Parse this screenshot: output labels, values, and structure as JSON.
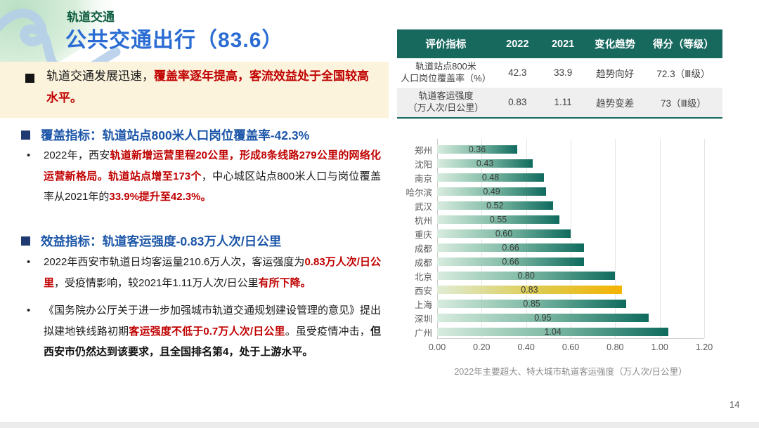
{
  "slide": {
    "kicker": "轨道交通",
    "title": "公共交通出行（83.6）",
    "page_number": "14"
  },
  "highlight": {
    "text_black": "轨道交通发展迅速，",
    "text_red": "覆盖率逐年提高，客流效益处于全国较高水平。"
  },
  "sections": [
    {
      "heading": "覆盖指标：轨道站点800米人口岗位覆盖率-42.3%",
      "paragraphs": [
        {
          "runs": [
            {
              "t": "2022年，西安",
              "style": "n"
            },
            {
              "t": "轨道新增运营里程20公里，形成8条线路279公里的网络化运营新格局。轨道站点增至173个",
              "style": "rb"
            },
            {
              "t": "，中心城区站点800米人口与岗位覆盖率从2021年的",
              "style": "n"
            },
            {
              "t": "33.9%提升至42.3%。",
              "style": "rb"
            }
          ]
        }
      ]
    },
    {
      "heading": "效益指标：轨道客运强度-0.83万人次/日公里",
      "paragraphs": [
        {
          "runs": [
            {
              "t": "2022年西安市轨道日均客运量210.6万人次，客运强度为",
              "style": "n"
            },
            {
              "t": "0.83万人次/日公里",
              "style": "rb"
            },
            {
              "t": "，受疫情影响，较2021年1.11万人次/日公里",
              "style": "n"
            },
            {
              "t": "有所下降。",
              "style": "rb"
            }
          ]
        },
        {
          "runs": [
            {
              "t": "《国务院办公厅关于进一步加强城市轨道交通规划建设管理的意见》提出拟建地铁线路初期",
              "style": "n"
            },
            {
              "t": "客运强度不低于0.7万人次/日公里",
              "style": "rb"
            },
            {
              "t": "。虽受疫情冲击，",
              "style": "n"
            },
            {
              "t": "但西安市仍然达到该要求，且全国排名第4，处于上游水平。",
              "style": "b"
            }
          ]
        }
      ]
    }
  ],
  "table": {
    "headers": [
      "评价指标",
      "2022",
      "2021",
      "变化趋势",
      "得分（等级）"
    ],
    "rows": [
      {
        "indicator_line1": "轨道站点800米",
        "indicator_line2": "人口岗位覆盖率（%）",
        "v2022": "42.3",
        "v2021": "33.9",
        "trend": "趋势向好",
        "score": "72.3（Ⅲ级）"
      },
      {
        "indicator_line1": "轨道客运强度",
        "indicator_line2": "（万人次/日公里）",
        "v2022": "0.83",
        "v2021": "1.11",
        "trend": "趋势变差",
        "score": "73（Ⅲ级）"
      }
    ]
  },
  "chart_data": {
    "type": "bar",
    "orientation": "horizontal",
    "caption": "2022年主要超大、特大城市轨道客运强度（万人次/日公里）",
    "categories": [
      "郑州",
      "沈阳",
      "南京",
      "哈尔滨",
      "武汉",
      "杭州",
      "重庆",
      "成都",
      "成都",
      "北京",
      "西安",
      "上海",
      "深圳",
      "广州"
    ],
    "values": [
      0.36,
      0.43,
      0.48,
      0.49,
      0.52,
      0.55,
      0.6,
      0.66,
      0.66,
      0.8,
      0.83,
      0.85,
      0.95,
      1.04
    ],
    "value_labels": [
      "0.36",
      "0.43",
      "0.48",
      "0.49",
      "0.52",
      "0.55",
      "0.60",
      "0.66",
      "0.66",
      "0.80",
      "0.83",
      "0.85",
      "0.95",
      "1.04"
    ],
    "highlight_index": 10,
    "highlight_category": "西安",
    "x_ticks": [
      0,
      0.2,
      0.4,
      0.6,
      0.8,
      1.0,
      1.2
    ],
    "x_tick_labels": [
      "0.00",
      "0.20",
      "0.40",
      "0.60",
      "0.80",
      "1.00",
      "1.20"
    ],
    "xlim": [
      0,
      1.2
    ],
    "grid": true,
    "colors": {
      "bar_gradient_start": "#d8ecdf",
      "bar_gradient_end": "#0f6b5e",
      "highlight_gradient_end": "#f5b301",
      "table_header": "#17695e",
      "title_blue": "#2a6cd3",
      "kicker_green": "#0d5c3f",
      "emphasis_red": "#c00000",
      "highlight_box_bg": "#fcf3dd"
    }
  }
}
